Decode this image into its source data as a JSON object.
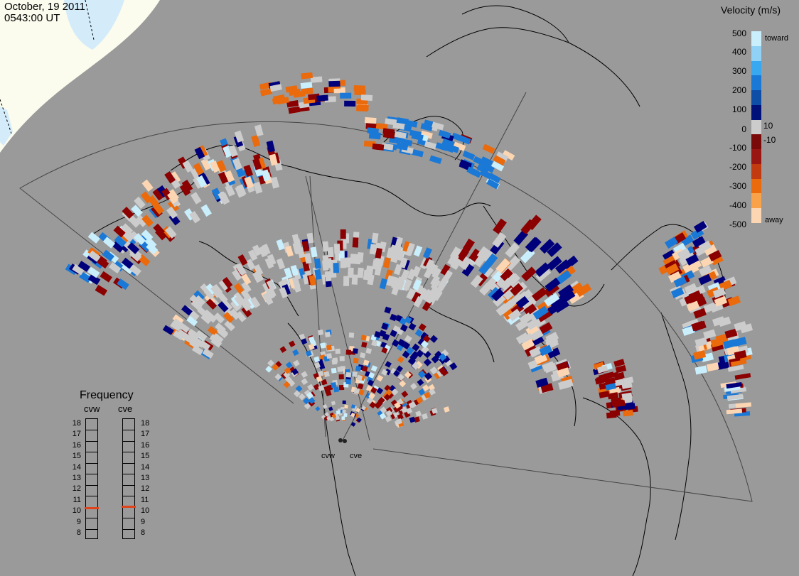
{
  "header": {
    "date": "October, 19 2011",
    "time": "0543:00 UT"
  },
  "colors": {
    "background": "#9a9a9a",
    "daylight": "#fbfbee",
    "ice": "#d4ecfa",
    "low_velocity_gray": "#cccccc",
    "dark_red": "#8b0000",
    "dark_blue": "#00007a"
  },
  "velocity_legend": {
    "title": "Velocity (m/s)",
    "toward_label": "toward",
    "away_label": "away",
    "ticks": [
      "500",
      "400",
      "300",
      "200",
      "100",
      "10",
      "0",
      "-10",
      "-100",
      "-200",
      "-300",
      "-400",
      "-500"
    ],
    "color_steps": [
      "#c9eefc",
      "#8fd2f5",
      "#38a8f0",
      "#1a78d6",
      "#0e4ea6",
      "#00127a",
      "#cccccc",
      "#7a0a0a",
      "#9a1612",
      "#c23a10",
      "#ea6a0c",
      "#f9a24a",
      "#fcd6b3"
    ]
  },
  "frequency_legend": {
    "title": "Frequency",
    "radars": [
      "cvw",
      "cve"
    ],
    "scale": [
      "18",
      "17",
      "16",
      "15",
      "14",
      "13",
      "12",
      "11",
      "10",
      "9",
      "8"
    ],
    "current_mhz": [
      10.5,
      10.6
    ],
    "marker_color": "#e0421a"
  },
  "sites": [
    {
      "id": "cvw",
      "label": "cvw"
    },
    {
      "id": "cve",
      "label": "cve"
    }
  ],
  "legend_icon": "velocity-colorbar-icon"
}
